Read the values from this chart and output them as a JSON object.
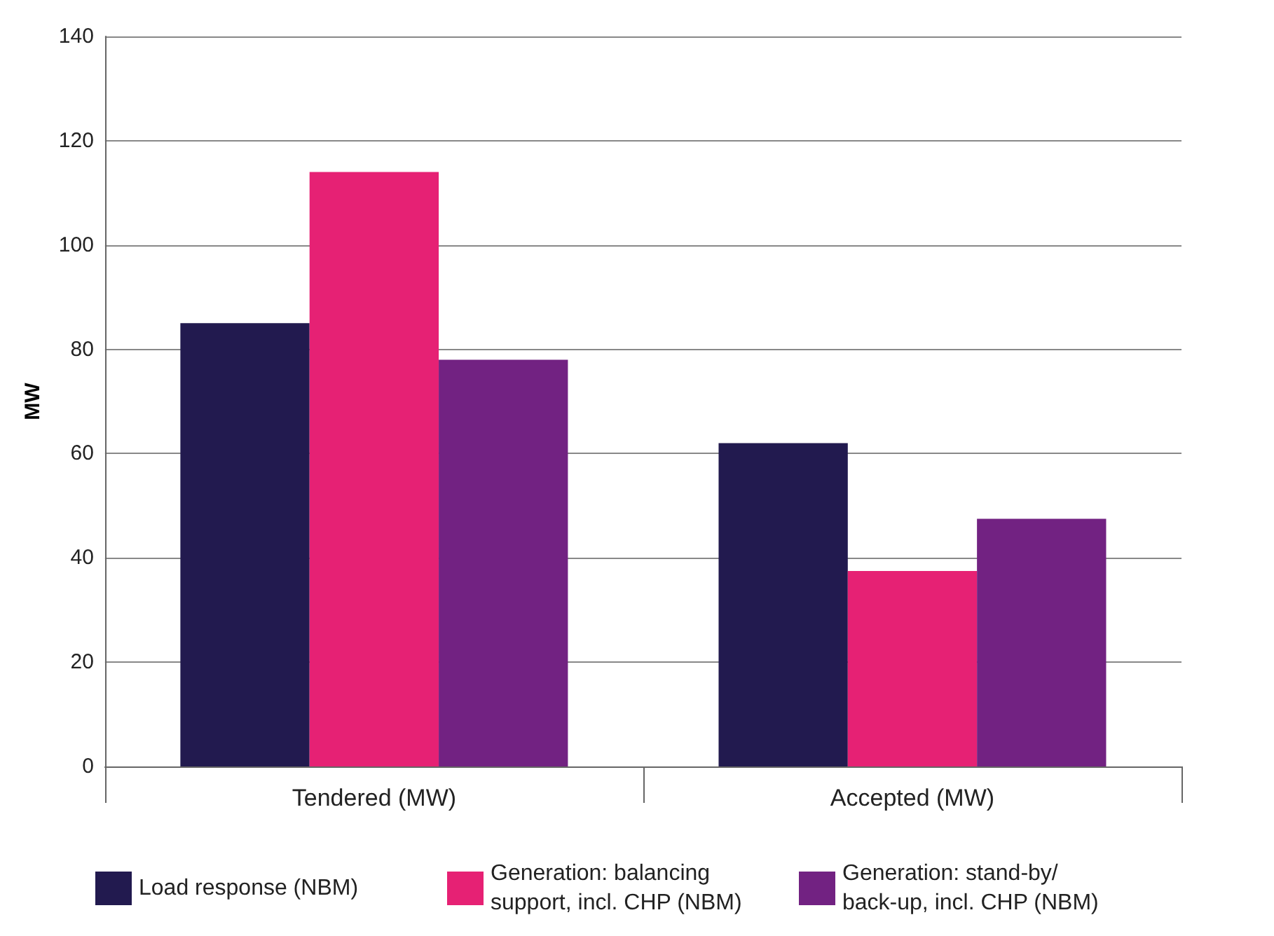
{
  "chart_data": {
    "type": "bar",
    "ylabel": "MW",
    "categories": [
      "Tendered (MW)",
      "Accepted (MW)"
    ],
    "series": [
      {
        "name": "Load response (NBM)",
        "color": "#221a4f",
        "values": [
          85,
          62
        ]
      },
      {
        "name": "Generation: balancing support, incl. CHP (NBM)",
        "color": "#e62174",
        "values": [
          114,
          37.5
        ]
      },
      {
        "name": "Generation: stand-by/back-up, incl. CHP (NBM)",
        "color": "#722282",
        "values": [
          78,
          47.5
        ]
      }
    ],
    "ylim": [
      0,
      140
    ],
    "yticks": [
      0,
      20,
      40,
      60,
      80,
      100,
      120,
      140
    ],
    "grid": "y",
    "legend": "bottom"
  }
}
